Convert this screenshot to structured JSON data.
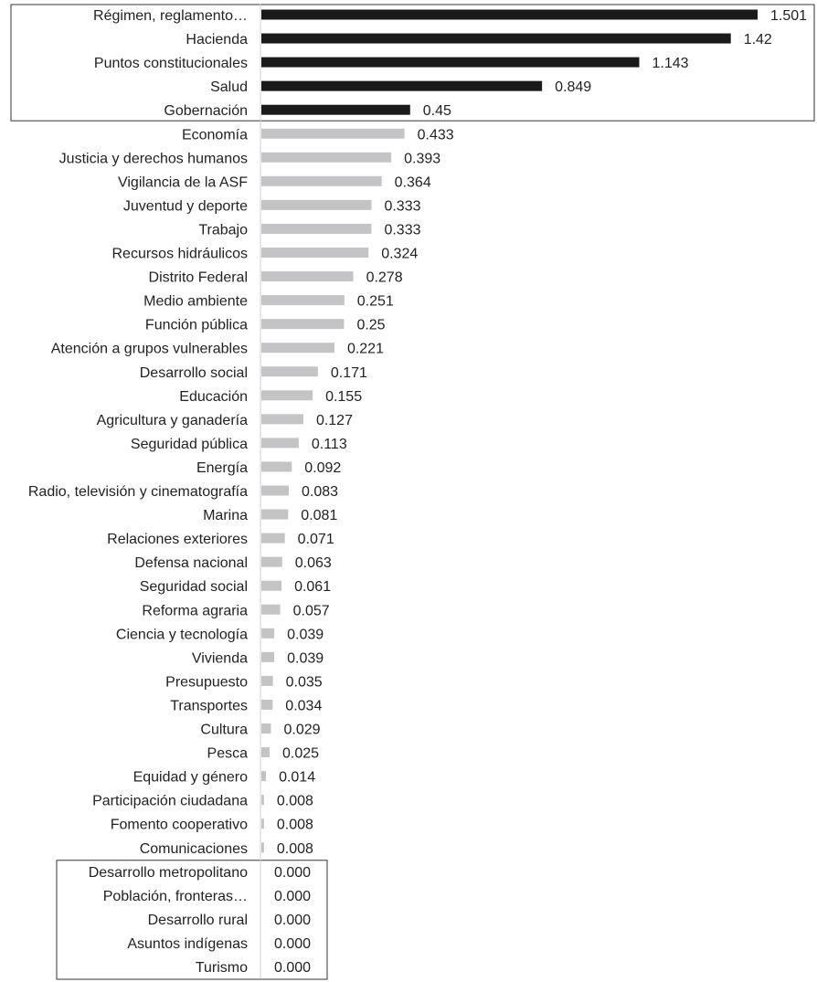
{
  "chart_data": {
    "type": "bar",
    "orientation": "horizontal",
    "title": "",
    "xlabel": "",
    "ylabel": "",
    "xlim": [
      0,
      1.501
    ],
    "grid": false,
    "highlight_color": "#1a1a1a",
    "base_color": "#c4c4c6",
    "highlight_top_n": 5,
    "zero_group_start": 36,
    "categories": [
      "Régimen, reglamento…",
      "Hacienda",
      "Puntos constitucionales",
      "Salud",
      "Gobernación",
      "Economía",
      "Justicia y derechos humanos",
      "Vigilancia de la ASF",
      "Juventud y deporte",
      "Trabajo",
      "Recursos hidráulicos",
      "Distrito Federal",
      "Medio ambiente",
      "Función pública",
      "Atención a grupos vulnerables",
      "Desarrollo social",
      "Educación",
      "Agricultura y ganadería",
      "Seguridad pública",
      "Energía",
      "Radio, televisión y cinematografía",
      "Marina",
      "Relaciones exteriores",
      "Defensa nacional",
      "Seguridad social",
      "Reforma agraria",
      "Ciencia y tecnología",
      "Vivienda",
      "Presupuesto",
      "Transportes",
      "Cultura",
      "Pesca",
      "Equidad y género",
      "Participación ciudadana",
      "Fomento cooperativo",
      "Comunicaciones",
      "Desarrollo metropolitano",
      "Población, fronteras…",
      "Desarrollo rural",
      "Asuntos indígenas",
      "Turismo"
    ],
    "values": [
      1.501,
      1.42,
      1.143,
      0.849,
      0.45,
      0.433,
      0.393,
      0.364,
      0.333,
      0.333,
      0.324,
      0.278,
      0.251,
      0.25,
      0.221,
      0.171,
      0.155,
      0.127,
      0.113,
      0.092,
      0.083,
      0.081,
      0.071,
      0.063,
      0.061,
      0.057,
      0.039,
      0.039,
      0.035,
      0.034,
      0.029,
      0.025,
      0.014,
      0.008,
      0.008,
      0.008,
      0,
      0,
      0,
      0,
      0
    ],
    "value_labels": [
      "1.501",
      "1.42",
      "1.143",
      "0.849",
      "0.45",
      "0.433",
      "0.393",
      "0.364",
      "0.333",
      "0.333",
      "0.324",
      "0.278",
      "0.251",
      "0.25",
      "0.221",
      "0.171",
      "0.155",
      "0.127",
      "0.113",
      "0.092",
      "0.083",
      "0.081",
      "0.071",
      "0.063",
      "0.061",
      "0.057",
      "0.039",
      "0.039",
      "0.035",
      "0.034",
      "0.029",
      "0.025",
      "0.014",
      "0.008",
      "0.008",
      "0.008",
      "0.000",
      "0.000",
      "0.000",
      "0.000",
      "0.000"
    ]
  }
}
